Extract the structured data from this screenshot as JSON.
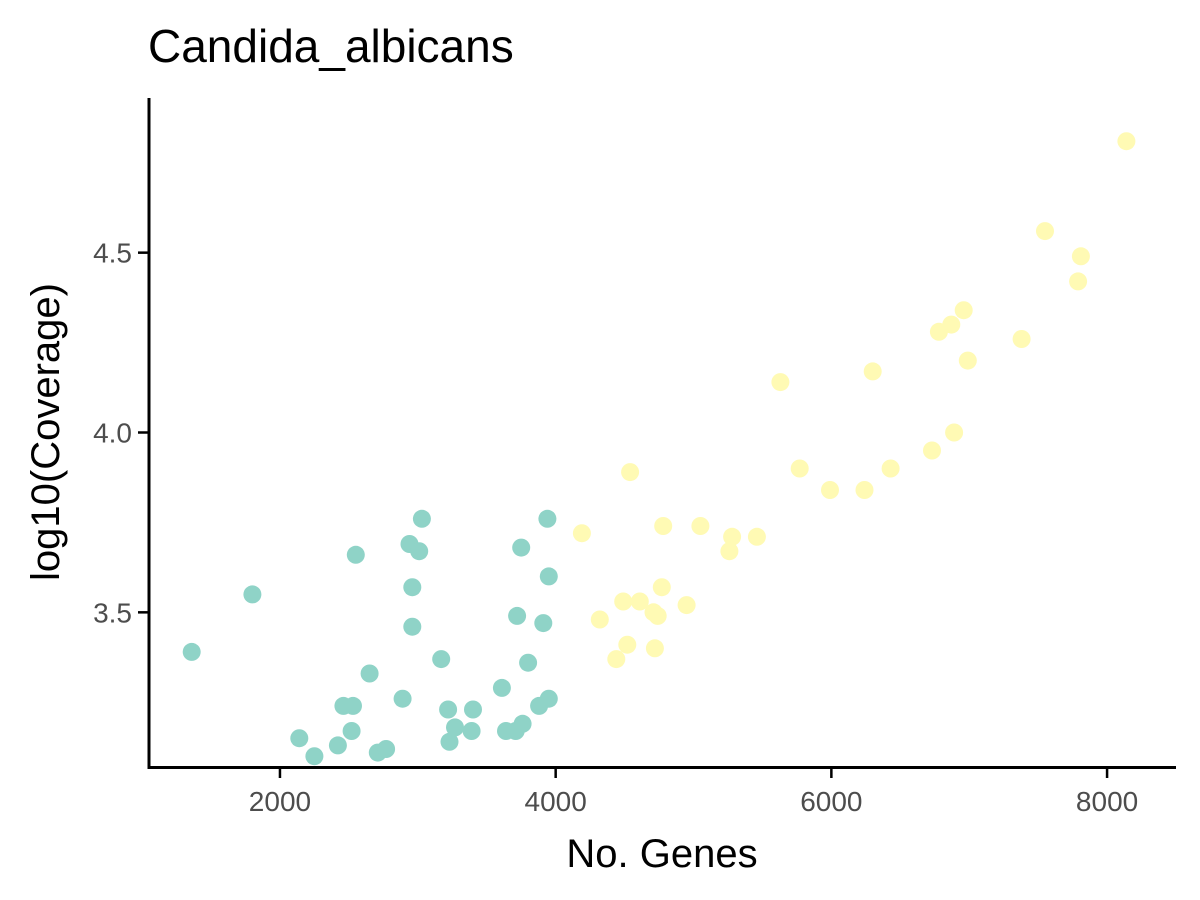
{
  "chart_data": {
    "type": "scatter",
    "title": "Candida_albicans",
    "xlabel": "No. Genes",
    "ylabel": "log10(Coverage)",
    "xlim": [
      1050,
      8500
    ],
    "ylim": [
      3.07,
      4.93
    ],
    "x_ticks": [
      {
        "value": 2000,
        "label": "2000"
      },
      {
        "value": 4000,
        "label": "4000"
      },
      {
        "value": 6000,
        "label": "6000"
      },
      {
        "value": 8000,
        "label": "8000"
      }
    ],
    "y_ticks": [
      {
        "value": 3.5,
        "label": "3.5"
      },
      {
        "value": 4.0,
        "label": "4.0"
      },
      {
        "value": 4.5,
        "label": "4.5"
      }
    ],
    "grid": false,
    "legend": "none",
    "series": [
      {
        "color": "#8fd3c7",
        "points": [
          [
            1360,
            3.39
          ],
          [
            1800,
            3.55
          ],
          [
            2140,
            3.15
          ],
          [
            2250,
            3.1
          ],
          [
            2420,
            3.13
          ],
          [
            2460,
            3.24
          ],
          [
            2520,
            3.17
          ],
          [
            2530,
            3.24
          ],
          [
            2550,
            3.66
          ],
          [
            2650,
            3.33
          ],
          [
            2710,
            3.11
          ],
          [
            2770,
            3.12
          ],
          [
            2890,
            3.26
          ],
          [
            2940,
            3.69
          ],
          [
            2960,
            3.57
          ],
          [
            2960,
            3.46
          ],
          [
            3010,
            3.67
          ],
          [
            3030,
            3.76
          ],
          [
            3170,
            3.37
          ],
          [
            3220,
            3.23
          ],
          [
            3230,
            3.14
          ],
          [
            3270,
            3.18
          ],
          [
            3390,
            3.17
          ],
          [
            3400,
            3.23
          ],
          [
            3610,
            3.29
          ],
          [
            3640,
            3.17
          ],
          [
            3710,
            3.17
          ],
          [
            3720,
            3.49
          ],
          [
            3750,
            3.68
          ],
          [
            3760,
            3.19
          ],
          [
            3800,
            3.36
          ],
          [
            3880,
            3.24
          ],
          [
            3910,
            3.47
          ],
          [
            3940,
            3.76
          ],
          [
            3950,
            3.6
          ],
          [
            3950,
            3.26
          ]
        ]
      },
      {
        "color": "#fffab4",
        "points": [
          [
            4190,
            3.72
          ],
          [
            4320,
            3.48
          ],
          [
            4440,
            3.37
          ],
          [
            4490,
            3.53
          ],
          [
            4520,
            3.41
          ],
          [
            4540,
            3.89
          ],
          [
            4610,
            3.53
          ],
          [
            4710,
            3.5
          ],
          [
            4720,
            3.4
          ],
          [
            4740,
            3.49
          ],
          [
            4770,
            3.57
          ],
          [
            4780,
            3.74
          ],
          [
            4950,
            3.52
          ],
          [
            5050,
            3.74
          ],
          [
            5260,
            3.67
          ],
          [
            5280,
            3.71
          ],
          [
            5460,
            3.71
          ],
          [
            5630,
            4.14
          ],
          [
            5770,
            3.9
          ],
          [
            5990,
            3.84
          ],
          [
            6240,
            3.84
          ],
          [
            6300,
            4.17
          ],
          [
            6430,
            3.9
          ],
          [
            6730,
            3.95
          ],
          [
            6780,
            4.28
          ],
          [
            6870,
            4.3
          ],
          [
            6890,
            4.0
          ],
          [
            6960,
            4.34
          ],
          [
            6990,
            4.2
          ],
          [
            7380,
            4.26
          ],
          [
            7550,
            4.56
          ],
          [
            7790,
            4.42
          ],
          [
            7810,
            4.49
          ],
          [
            8140,
            4.81
          ]
        ]
      }
    ]
  }
}
